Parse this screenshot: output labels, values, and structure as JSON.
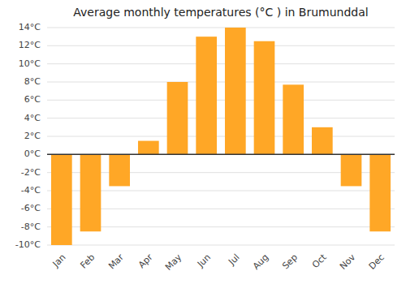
{
  "chart_data": {
    "type": "bar",
    "title": "Average monthly temperatures (°C ) in Brumunddal",
    "categories": [
      "Jan",
      "Feb",
      "Mar",
      "Apr",
      "May",
      "Jun",
      "Jul",
      "Aug",
      "Sep",
      "Oct",
      "Nov",
      "Dec"
    ],
    "values": [
      -10,
      -8.5,
      -3.5,
      1.5,
      8,
      13,
      14,
      12.5,
      7.7,
      3,
      -3.5,
      -8.5
    ],
    "color": "#FFA726",
    "ylim": [
      -10,
      14
    ],
    "yticks": [
      {
        "value": -10,
        "label": "-10°C"
      },
      {
        "value": -8,
        "label": "-8°C"
      },
      {
        "value": -6,
        "label": "-6°C"
      },
      {
        "value": -4,
        "label": "-4°C"
      },
      {
        "value": -2,
        "label": "-2°C"
      },
      {
        "value": 0,
        "label": "0°C"
      },
      {
        "value": 2,
        "label": "2°C"
      },
      {
        "value": 4,
        "label": "4°C"
      },
      {
        "value": 6,
        "label": "6°C"
      },
      {
        "value": 8,
        "label": "8°C"
      },
      {
        "value": 10,
        "label": "10°C"
      },
      {
        "value": 12,
        "label": "12°C"
      },
      {
        "value": 14,
        "label": "14°C"
      }
    ],
    "grid": true
  }
}
